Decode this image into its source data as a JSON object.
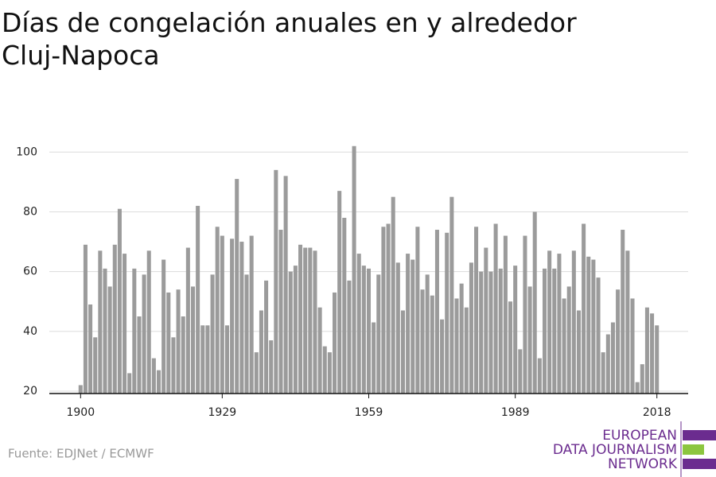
{
  "chart_data": {
    "type": "bar",
    "title": "Días de congelación anuales en y alrededor Cluj-Napoca",
    "source": "Fuente: EDJNet / ECMWF",
    "logo": [
      "EUROPEAN",
      "DATA JOURNALISM",
      "NETWORK"
    ],
    "color": "#9b9b9b",
    "grid": true,
    "x": [
      1900,
      1901,
      1902,
      1903,
      1904,
      1905,
      1906,
      1907,
      1908,
      1909,
      1910,
      1911,
      1912,
      1913,
      1914,
      1915,
      1916,
      1917,
      1918,
      1919,
      1920,
      1921,
      1922,
      1923,
      1924,
      1925,
      1926,
      1927,
      1928,
      1929,
      1930,
      1931,
      1932,
      1933,
      1934,
      1935,
      1936,
      1937,
      1938,
      1939,
      1940,
      1941,
      1942,
      1943,
      1944,
      1945,
      1946,
      1947,
      1948,
      1949,
      1950,
      1951,
      1952,
      1953,
      1954,
      1955,
      1956,
      1957,
      1958,
      1959,
      1960,
      1961,
      1962,
      1963,
      1964,
      1965,
      1966,
      1967,
      1968,
      1969,
      1970,
      1971,
      1972,
      1973,
      1974,
      1975,
      1976,
      1977,
      1978,
      1979,
      1980,
      1981,
      1982,
      1983,
      1984,
      1985,
      1986,
      1987,
      1988,
      1989,
      1990,
      1991,
      1992,
      1993,
      1994,
      1995,
      1996,
      1997,
      1998,
      1999,
      2000,
      2001,
      2002,
      2003,
      2004,
      2005,
      2006,
      2007,
      2008,
      2009,
      2010,
      2011,
      2012,
      2013,
      2014,
      2015,
      2016,
      2017,
      2018
    ],
    "values": [
      22,
      69,
      49,
      38,
      67,
      61,
      55,
      69,
      81,
      66,
      26,
      61,
      45,
      59,
      67,
      31,
      27,
      64,
      53,
      38,
      54,
      45,
      68,
      55,
      82,
      42,
      42,
      59,
      75,
      72,
      42,
      71,
      91,
      70,
      59,
      72,
      33,
      47,
      57,
      37,
      94,
      74,
      92,
      60,
      62,
      69,
      68,
      68,
      67,
      48,
      35,
      33,
      53,
      87,
      78,
      57,
      102,
      66,
      62,
      61,
      43,
      59,
      75,
      76,
      85,
      63,
      47,
      66,
      64,
      75,
      54,
      59,
      52,
      74,
      44,
      73,
      85,
      51,
      56,
      48,
      63,
      75,
      60,
      68,
      60,
      76,
      61,
      72,
      50,
      62,
      34,
      72,
      55,
      80,
      31,
      61,
      67,
      61,
      66,
      51,
      55,
      67,
      47,
      76,
      65,
      64,
      58,
      33,
      39,
      43,
      54,
      74,
      67,
      51,
      23,
      29,
      48,
      46,
      42
    ],
    "xlim": [
      1893.6,
      2024.4
    ],
    "xticks": [
      1900,
      1929,
      1959,
      1989,
      2018
    ],
    "ylim": [
      19.2,
      103
    ],
    "yticks": [
      20,
      40,
      60,
      80,
      100
    ]
  }
}
